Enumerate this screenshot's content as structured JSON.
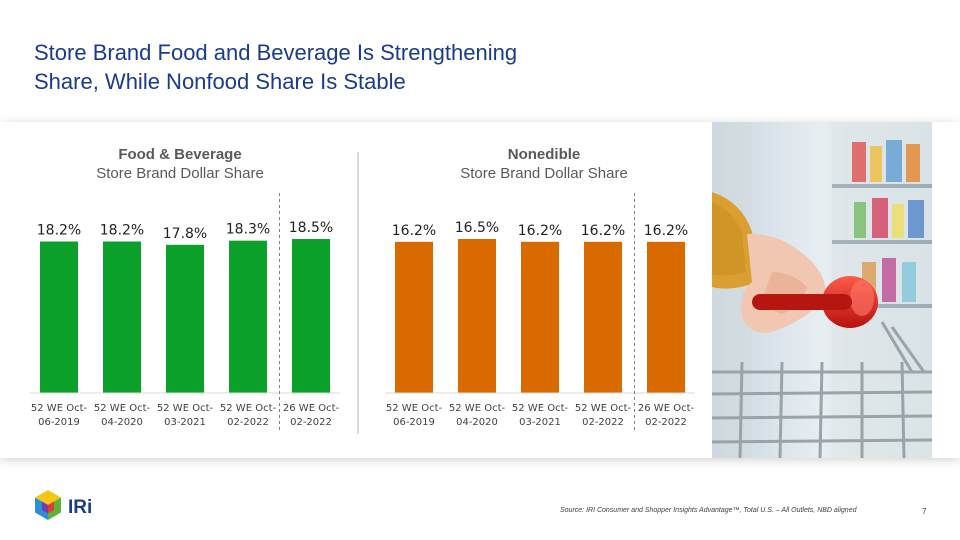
{
  "slide": {
    "title_line1": "Store Brand Food and Beverage Is Strengthening",
    "title_line2": "Share, While Nonfood Share Is Stable",
    "source": "Source: IRI Consumer and Shopper Insights Advantage™, Total U.S. – All Outlets, NBD aligned",
    "page_number": "7",
    "logo_text": "IRi"
  },
  "chart_data": [
    {
      "type": "bar",
      "title": "Food & Beverage",
      "subtitle": "Store Brand Dollar Share",
      "categories": [
        [
          "52 WE Oct-",
          "06-2019"
        ],
        [
          "52 WE Oct-",
          "04-2020"
        ],
        [
          "52 WE Oct-",
          "03-2021"
        ],
        [
          "52 WE Oct-",
          "02-2022"
        ],
        [
          "26 WE Oct-",
          "02-2022"
        ]
      ],
      "values": [
        18.2,
        18.2,
        17.8,
        18.3,
        18.5
      ],
      "data_labels": [
        "18.2%",
        "18.2%",
        "17.8%",
        "18.3%",
        "18.5%"
      ],
      "color": "#0aa02a",
      "ylim": [
        0,
        18.5
      ],
      "divider_before_index": 4,
      "grid": false
    },
    {
      "type": "bar",
      "title": "Nonedible",
      "subtitle": "Store Brand Dollar Share",
      "categories": [
        [
          "52 WE Oct-",
          "06-2019"
        ],
        [
          "52 WE Oct-",
          "04-2020"
        ],
        [
          "52 WE Oct-",
          "03-2021"
        ],
        [
          "52 WE Oct-",
          "02-2022"
        ],
        [
          "26 WE Oct-",
          "02-2022"
        ]
      ],
      "values": [
        16.2,
        16.5,
        16.2,
        16.2,
        16.2
      ],
      "data_labels": [
        "16.2%",
        "16.5%",
        "16.2%",
        "16.2%",
        "16.2%"
      ],
      "color": "#d86a00",
      "ylim": [
        0,
        16.5
      ],
      "divider_before_index": 4,
      "grid": false
    }
  ]
}
